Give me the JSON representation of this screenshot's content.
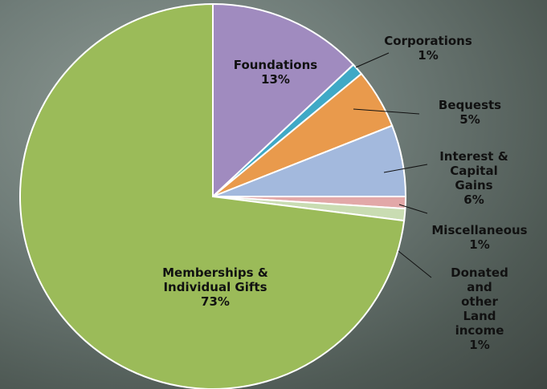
{
  "chart_data": {
    "type": "pie",
    "categories": [
      "Foundations",
      "Corporations",
      "Bequests",
      "Interest &\nCapital Gains",
      "Miscellaneous",
      "Donated and\nother Land\nincome",
      "Memberships &\nIndividual Gifts"
    ],
    "values": [
      13,
      1,
      5,
      6,
      1,
      1,
      73
    ],
    "value_labels": [
      "13%",
      "1%",
      "5%",
      "6%",
      "1%",
      "1%",
      "73%"
    ],
    "colors": [
      "#a08bbf",
      "#3fa9c6",
      "#e99a4c",
      "#a3b9dd",
      "#e2a8a8",
      "#c9dcb2",
      "#9bbb59"
    ]
  }
}
